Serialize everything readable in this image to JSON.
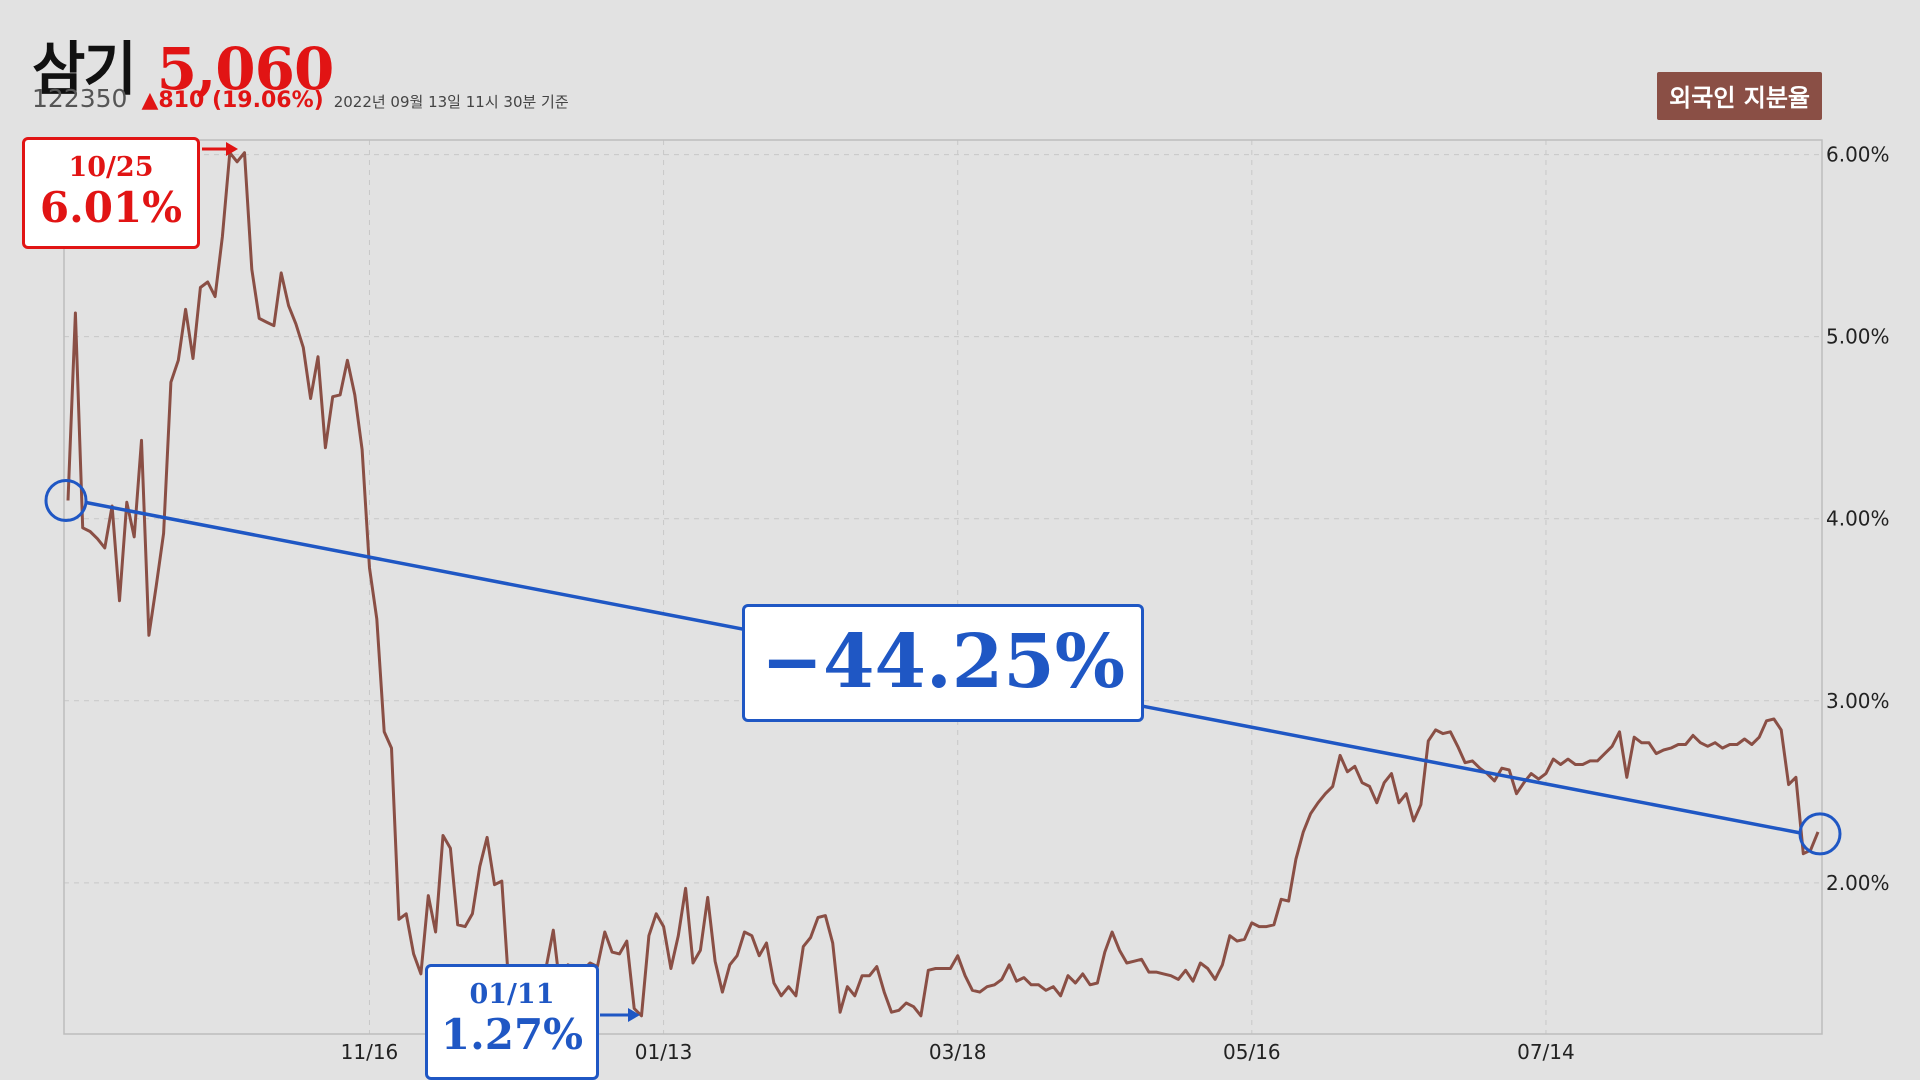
{
  "header": {
    "stock_name": "삼기",
    "price": "5,060",
    "code": "122350",
    "change": "▲810 (19.06%)",
    "timestamp": "2022년 09월 13일 11시 30분 기준"
  },
  "legend": {
    "label": "외국인 지분율"
  },
  "annotations": {
    "high": {
      "date": "10/25",
      "value": "6.01%"
    },
    "low": {
      "date": "01/11",
      "value": "1.27%"
    },
    "change": "−44.25%"
  },
  "colors": {
    "line": "#8a4f45",
    "up": "#e11414",
    "trend": "#1f57c4",
    "grid": "#c8c8c8"
  },
  "chart_data": {
    "type": "line",
    "title": "외국인 지분율",
    "x_ticks": [
      "11/16",
      "01/13",
      "03/18",
      "05/16",
      "07/14"
    ],
    "y_ticks": [
      "2.00%",
      "3.00%",
      "4.00%",
      "5.00%",
      "6.00%"
    ],
    "ylim": [
      1.17,
      6.08
    ],
    "grid": true,
    "series": [
      {
        "name": "외국인 지분율",
        "values": [
          4.1,
          5.13,
          3.95,
          3.93,
          3.89,
          3.84,
          4.07,
          3.55,
          4.09,
          3.9,
          4.43,
          3.36,
          3.63,
          3.92,
          4.75,
          4.87,
          5.15,
          4.88,
          5.27,
          5.3,
          5.22,
          5.55,
          6.01,
          5.96,
          6.01,
          5.37,
          5.1,
          5.08,
          5.06,
          5.35,
          5.17,
          5.07,
          4.94,
          4.66,
          4.89,
          4.39,
          4.67,
          4.68,
          4.87,
          4.68,
          4.38,
          3.73,
          3.45,
          2.83,
          2.74,
          1.8,
          1.83,
          1.61,
          1.5,
          1.93,
          1.73,
          2.26,
          2.19,
          1.77,
          1.76,
          1.83,
          2.09,
          2.25,
          1.99,
          2.01,
          1.4,
          1.35,
          1.5,
          1.38,
          1.44,
          1.53,
          1.74,
          1.4,
          1.55,
          1.53,
          1.52,
          1.56,
          1.54,
          1.73,
          1.62,
          1.61,
          1.68,
          1.31,
          1.27,
          1.71,
          1.83,
          1.76,
          1.53,
          1.71,
          1.97,
          1.56,
          1.63,
          1.92,
          1.57,
          1.4,
          1.55,
          1.6,
          1.73,
          1.71,
          1.6,
          1.67,
          1.45,
          1.38,
          1.43,
          1.38,
          1.65,
          1.7,
          1.81,
          1.82,
          1.67,
          1.29,
          1.43,
          1.38,
          1.49,
          1.49,
          1.54,
          1.4,
          1.29,
          1.3,
          1.34,
          1.32,
          1.27,
          1.52,
          1.53,
          1.53,
          1.53,
          1.6,
          1.49,
          1.41,
          1.4,
          1.43,
          1.44,
          1.47,
          1.55,
          1.46,
          1.48,
          1.44,
          1.44,
          1.41,
          1.43,
          1.38,
          1.49,
          1.45,
          1.5,
          1.44,
          1.45,
          1.62,
          1.73,
          1.63,
          1.56,
          1.57,
          1.58,
          1.51,
          1.51,
          1.5,
          1.49,
          1.47,
          1.52,
          1.46,
          1.56,
          1.53,
          1.47,
          1.55,
          1.71,
          1.68,
          1.69,
          1.78,
          1.76,
          1.76,
          1.77,
          1.91,
          1.9,
          2.13,
          2.28,
          2.38,
          2.44,
          2.49,
          2.53,
          2.7,
          2.61,
          2.64,
          2.55,
          2.53,
          2.44,
          2.55,
          2.6,
          2.44,
          2.49,
          2.34,
          2.43,
          2.78,
          2.84,
          2.82,
          2.83,
          2.75,
          2.66,
          2.67,
          2.63,
          2.6,
          2.56,
          2.63,
          2.62,
          2.49,
          2.55,
          2.6,
          2.57,
          2.6,
          2.68,
          2.65,
          2.68,
          2.65,
          2.65,
          2.67,
          2.67,
          2.71,
          2.75,
          2.83,
          2.58,
          2.8,
          2.77,
          2.77,
          2.71,
          2.73,
          2.74,
          2.76,
          2.76,
          2.81,
          2.77,
          2.75,
          2.77,
          2.74,
          2.76,
          2.76,
          2.79,
          2.76,
          2.8,
          2.89,
          2.9,
          2.84,
          2.54,
          2.58,
          2.16,
          2.18,
          2.28
        ]
      }
    ]
  }
}
